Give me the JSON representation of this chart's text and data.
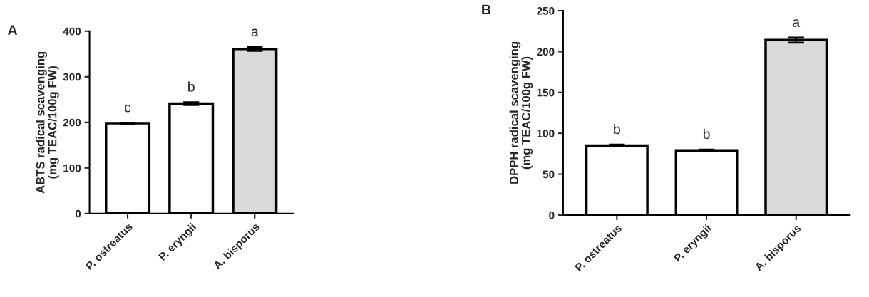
{
  "chart_data": [
    {
      "type": "bar",
      "title": "A",
      "ylabel": "ABTS radical scavenging\n(mg TEAC/100g FW)",
      "categories": [
        "P. ostreatus",
        "P. eryngii",
        "A. bisporus"
      ],
      "values": [
        198,
        241,
        361
      ],
      "errors": [
        1,
        3,
        4
      ],
      "colors": [
        "#ffffff",
        "#ffffff",
        "#d9d9d9"
      ],
      "ylim": [
        0,
        400
      ],
      "yticks": [
        0,
        100,
        200,
        300,
        400
      ],
      "grid": false,
      "legend": false,
      "annotations": [
        {
          "text": "c",
          "x": "P. ostreatus",
          "y": 199
        },
        {
          "text": "b",
          "x": "P. eryngii",
          "y": 244
        },
        {
          "text": "a",
          "x": "A. bisporus",
          "y": 365
        }
      ]
    },
    {
      "type": "bar",
      "title": "B",
      "ylabel": "DPPH radical scavenging\n(mg TEAC/100g FW)",
      "categories": [
        "P. ostreatus",
        "P. eryngii",
        "A. bisporus"
      ],
      "values": [
        85,
        79,
        214
      ],
      "errors": [
        1,
        1,
        3
      ],
      "colors": [
        "#ffffff",
        "#ffffff",
        "#d9d9d9"
      ],
      "ylim": [
        0,
        250
      ],
      "yticks": [
        0,
        50,
        100,
        150,
        200,
        250
      ],
      "grid": false,
      "legend": false,
      "annotations": [
        {
          "text": "b",
          "x": "P. ostreatus",
          "y": 86
        },
        {
          "text": "b",
          "x": "P. eryngii",
          "y": 80
        },
        {
          "text": "a",
          "x": "A. bisporus",
          "y": 217
        }
      ]
    }
  ]
}
